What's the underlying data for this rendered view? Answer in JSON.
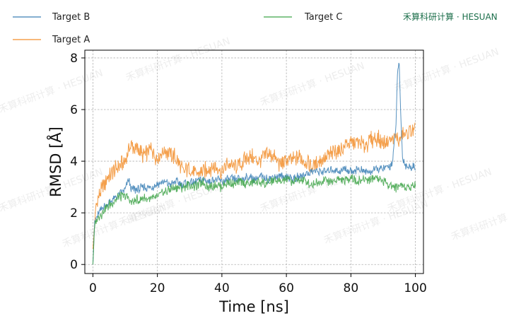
{
  "brand": "禾算科研计算 · HESUAN",
  "watermark": "禾算科研计算 · HESUAN",
  "colors": {
    "Target A": "#f28e2b",
    "Target B": "#3a7fb5",
    "Target C": "#3ea348",
    "grid": "#b0b0b0"
  },
  "legend": [
    {
      "label": "Target B"
    },
    {
      "label": "Target A"
    },
    {
      "label": "Target C"
    }
  ],
  "chart_data": {
    "type": "line",
    "xlabel": "Time [ns]",
    "ylabel": "RMSD [Å]",
    "xlim": [
      -2.5,
      102.5
    ],
    "ylim": [
      -0.35,
      8.3
    ],
    "xticks": [
      "0",
      "20",
      "40",
      "60",
      "80",
      "100"
    ],
    "yticks": [
      "0",
      "2",
      "4",
      "6",
      "8"
    ],
    "grid": true,
    "legend_position": "top",
    "series": [
      {
        "name": "Target A",
        "x": [
          0,
          1,
          2,
          3,
          4,
          5,
          6,
          8,
          10,
          11,
          12,
          14,
          16,
          18,
          20,
          22,
          24,
          26,
          28,
          30,
          32,
          34,
          36,
          38,
          40,
          42,
          44,
          46,
          48,
          50,
          52,
          54,
          56,
          58,
          60,
          62,
          64,
          66,
          68,
          70,
          72,
          74,
          76,
          78,
          80,
          82,
          84,
          86,
          88,
          90,
          92,
          94,
          95,
          96,
          98,
          100
        ],
        "y": [
          0.6,
          2.3,
          2.7,
          3.0,
          3.2,
          3.4,
          3.6,
          3.8,
          4.0,
          4.5,
          4.6,
          4.4,
          4.2,
          4.5,
          4.1,
          4.4,
          4.3,
          4.1,
          3.6,
          3.7,
          3.5,
          3.6,
          3.7,
          3.8,
          3.6,
          3.9,
          3.8,
          3.9,
          4.2,
          4.1,
          4.0,
          4.3,
          4.2,
          3.9,
          4.0,
          4.1,
          4.2,
          4.0,
          3.8,
          4.0,
          4.1,
          4.3,
          4.4,
          4.6,
          4.7,
          4.8,
          4.6,
          4.8,
          4.9,
          4.7,
          4.8,
          4.9,
          4.8,
          5.0,
          5.1,
          5.2
        ]
      },
      {
        "name": "Target B",
        "x": [
          0,
          0.5,
          1,
          2,
          3,
          4,
          6,
          8,
          10,
          11,
          12,
          14,
          16,
          18,
          20,
          22,
          24,
          26,
          28,
          30,
          32,
          34,
          36,
          38,
          40,
          42,
          44,
          46,
          48,
          50,
          52,
          54,
          56,
          58,
          60,
          62,
          64,
          66,
          68,
          70,
          72,
          74,
          76,
          78,
          80,
          82,
          84,
          86,
          88,
          90,
          92,
          93,
          94,
          94.5,
          95,
          95.5,
          96,
          97,
          98,
          100
        ],
        "y": [
          0,
          1.5,
          1.8,
          2.0,
          2.2,
          2.3,
          2.5,
          2.7,
          2.9,
          3.3,
          2.9,
          2.9,
          3.0,
          3.0,
          3.1,
          3.2,
          3.1,
          3.2,
          3.1,
          3.2,
          3.2,
          3.3,
          3.2,
          3.3,
          3.2,
          3.3,
          3.3,
          3.3,
          3.4,
          3.3,
          3.4,
          3.3,
          3.4,
          3.4,
          3.4,
          3.3,
          3.4,
          3.5,
          3.6,
          3.6,
          3.6,
          3.7,
          3.6,
          3.7,
          3.6,
          3.7,
          3.6,
          3.6,
          3.7,
          3.7,
          3.8,
          4.0,
          5.5,
          7.5,
          7.8,
          5.6,
          4.2,
          3.8,
          3.8,
          3.8
        ]
      },
      {
        "name": "Target C",
        "x": [
          0,
          0.5,
          1,
          2,
          3,
          4,
          6,
          8,
          10,
          12,
          14,
          16,
          18,
          20,
          22,
          24,
          26,
          28,
          30,
          32,
          34,
          36,
          38,
          40,
          42,
          44,
          46,
          48,
          50,
          52,
          54,
          56,
          58,
          60,
          62,
          64,
          66,
          68,
          70,
          72,
          74,
          76,
          78,
          80,
          82,
          84,
          86,
          88,
          90,
          92,
          94,
          96,
          98,
          100
        ],
        "y": [
          0,
          1.4,
          1.7,
          1.9,
          2.0,
          2.2,
          2.4,
          2.6,
          2.7,
          2.4,
          2.5,
          2.6,
          2.5,
          2.6,
          2.8,
          2.9,
          3.0,
          3.0,
          3.1,
          3.0,
          3.2,
          3.0,
          3.1,
          3.0,
          3.2,
          3.1,
          3.2,
          3.1,
          3.2,
          3.2,
          3.1,
          3.3,
          3.2,
          3.3,
          3.2,
          3.3,
          3.2,
          3.1,
          3.2,
          3.3,
          3.2,
          3.3,
          3.2,
          3.4,
          3.2,
          3.3,
          3.3,
          3.4,
          3.2,
          3.1,
          3.0,
          3.1,
          3.0,
          3.1
        ]
      }
    ]
  }
}
